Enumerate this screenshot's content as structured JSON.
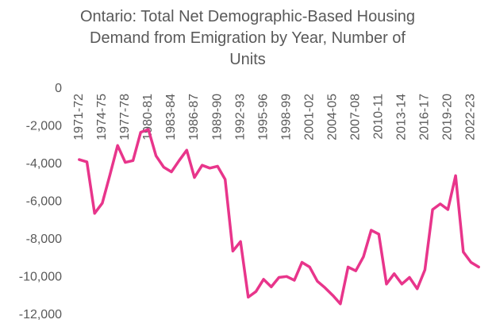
{
  "chart_data": {
    "type": "line",
    "title": "Ontario: Total Net Demographic-Based Housing Demand from Emigration by Year, Number of Units",
    "categories": [
      "1971-72",
      null,
      null,
      "1974-75",
      null,
      null,
      "1977-78",
      null,
      null,
      "1980-81",
      null,
      null,
      "1983-84",
      null,
      null,
      "1986-87",
      null,
      null,
      "1989-90",
      null,
      null,
      "1992-93",
      null,
      null,
      "1995-96",
      null,
      null,
      "1998-99",
      null,
      null,
      "2001-02",
      null,
      null,
      "2004-05",
      null,
      null,
      "2007-08",
      null,
      null,
      "2010-11",
      null,
      null,
      "2013-14",
      null,
      null,
      "2016-17",
      null,
      null,
      "2019-20",
      null,
      null,
      "2022-23",
      null
    ],
    "series": [
      {
        "color": "#e8358b",
        "values": [
          -3750,
          -3870,
          -6600,
          -6060,
          -4550,
          -3000,
          -3900,
          -3800,
          -2300,
          -2150,
          -3550,
          -4150,
          -4400,
          -3800,
          -3250,
          -4700,
          -4050,
          -4200,
          -4100,
          -4800,
          -8600,
          -8100,
          -11050,
          -10750,
          -10100,
          -10500,
          -10000,
          -9950,
          -10150,
          -9200,
          -9450,
          -10200,
          -10550,
          -10950,
          -11400,
          -9450,
          -9650,
          -8900,
          -7500,
          -7700,
          -10350,
          -9800,
          -10350,
          -10000,
          -10600,
          -9600,
          -6400,
          -6100,
          -6400,
          -4600,
          -8650,
          -9200,
          -9450
        ]
      }
    ],
    "ylim": [
      -12000,
      0
    ],
    "yticks": [
      0,
      {
        "value": -2000,
        "label": "-2,000"
      },
      {
        "value": -4000,
        "label": "-4,000"
      },
      {
        "value": -6000,
        "label": "-6,000"
      },
      {
        "value": -8000,
        "label": "-8,000"
      },
      {
        "value": -10000,
        "label": "-10,000"
      },
      {
        "value": -12000,
        "label": "-12,000"
      }
    ],
    "grid": false
  }
}
